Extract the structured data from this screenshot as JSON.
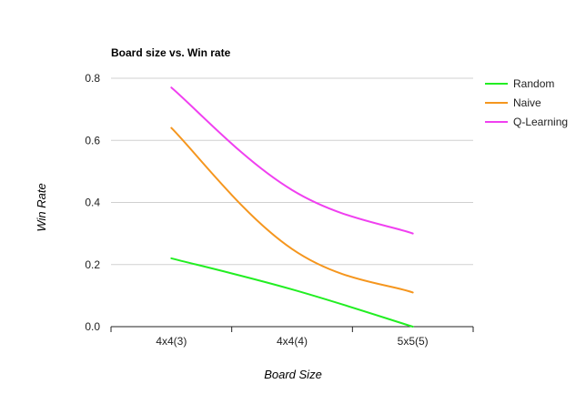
{
  "chart_data": {
    "type": "line",
    "title": "Board size vs. Win rate",
    "xlabel": "Board Size",
    "ylabel": "Win Rate",
    "categories": [
      "4x4(3)",
      "4x4(4)",
      "5x5(5)"
    ],
    "ylim": [
      0,
      0.8
    ],
    "yticks": [
      "0.0",
      "0.2",
      "0.4",
      "0.6",
      "0.8"
    ],
    "grid": true,
    "legend_position": "right",
    "series": [
      {
        "name": "Random",
        "values": [
          0.22,
          0.12,
          0.0
        ],
        "color": "#22ee22"
      },
      {
        "name": "Naive",
        "values": [
          0.64,
          0.25,
          0.11
        ],
        "color": "#f5961e"
      },
      {
        "name": "Q-Learning",
        "values": [
          0.77,
          0.44,
          0.3
        ],
        "color": "#f040f0"
      }
    ]
  }
}
